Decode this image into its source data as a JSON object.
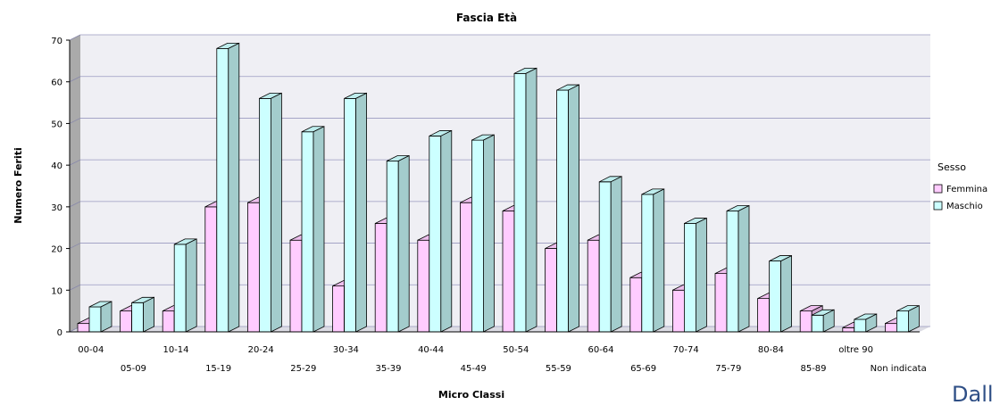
{
  "chart_data": {
    "type": "bar",
    "title": "Fascia Età",
    "xlabel": "Micro Classi",
    "ylabel": "Numero Feriti",
    "ylim": [
      0,
      70
    ],
    "yticks": [
      "0",
      "10",
      "20",
      "30",
      "40",
      "50",
      "60",
      "70"
    ],
    "grid": true,
    "style": "3d",
    "legend_title": "Sesso",
    "legend_position": "right",
    "categories": [
      "00-04",
      "05-09",
      "10-14",
      "15-19",
      "20-24",
      "25-29",
      "30-34",
      "35-39",
      "40-44",
      "45-49",
      "50-54",
      "55-59",
      "60-64",
      "65-69",
      "70-74",
      "75-79",
      "80-84",
      "85-89",
      "oltre 90",
      "Non indicata"
    ],
    "series": [
      {
        "name": "Femmina",
        "color": "#ffccff",
        "values": [
          2,
          5,
          5,
          30,
          31,
          22,
          11,
          26,
          22,
          31,
          29,
          20,
          22,
          13,
          10,
          14,
          8,
          5,
          1,
          2
        ]
      },
      {
        "name": "Maschio",
        "color": "#ccffff",
        "values": [
          6,
          7,
          21,
          68,
          56,
          48,
          56,
          41,
          47,
          46,
          62,
          58,
          36,
          33,
          26,
          29,
          17,
          4,
          3,
          5
        ]
      }
    ]
  },
  "brand_text": "Dall"
}
